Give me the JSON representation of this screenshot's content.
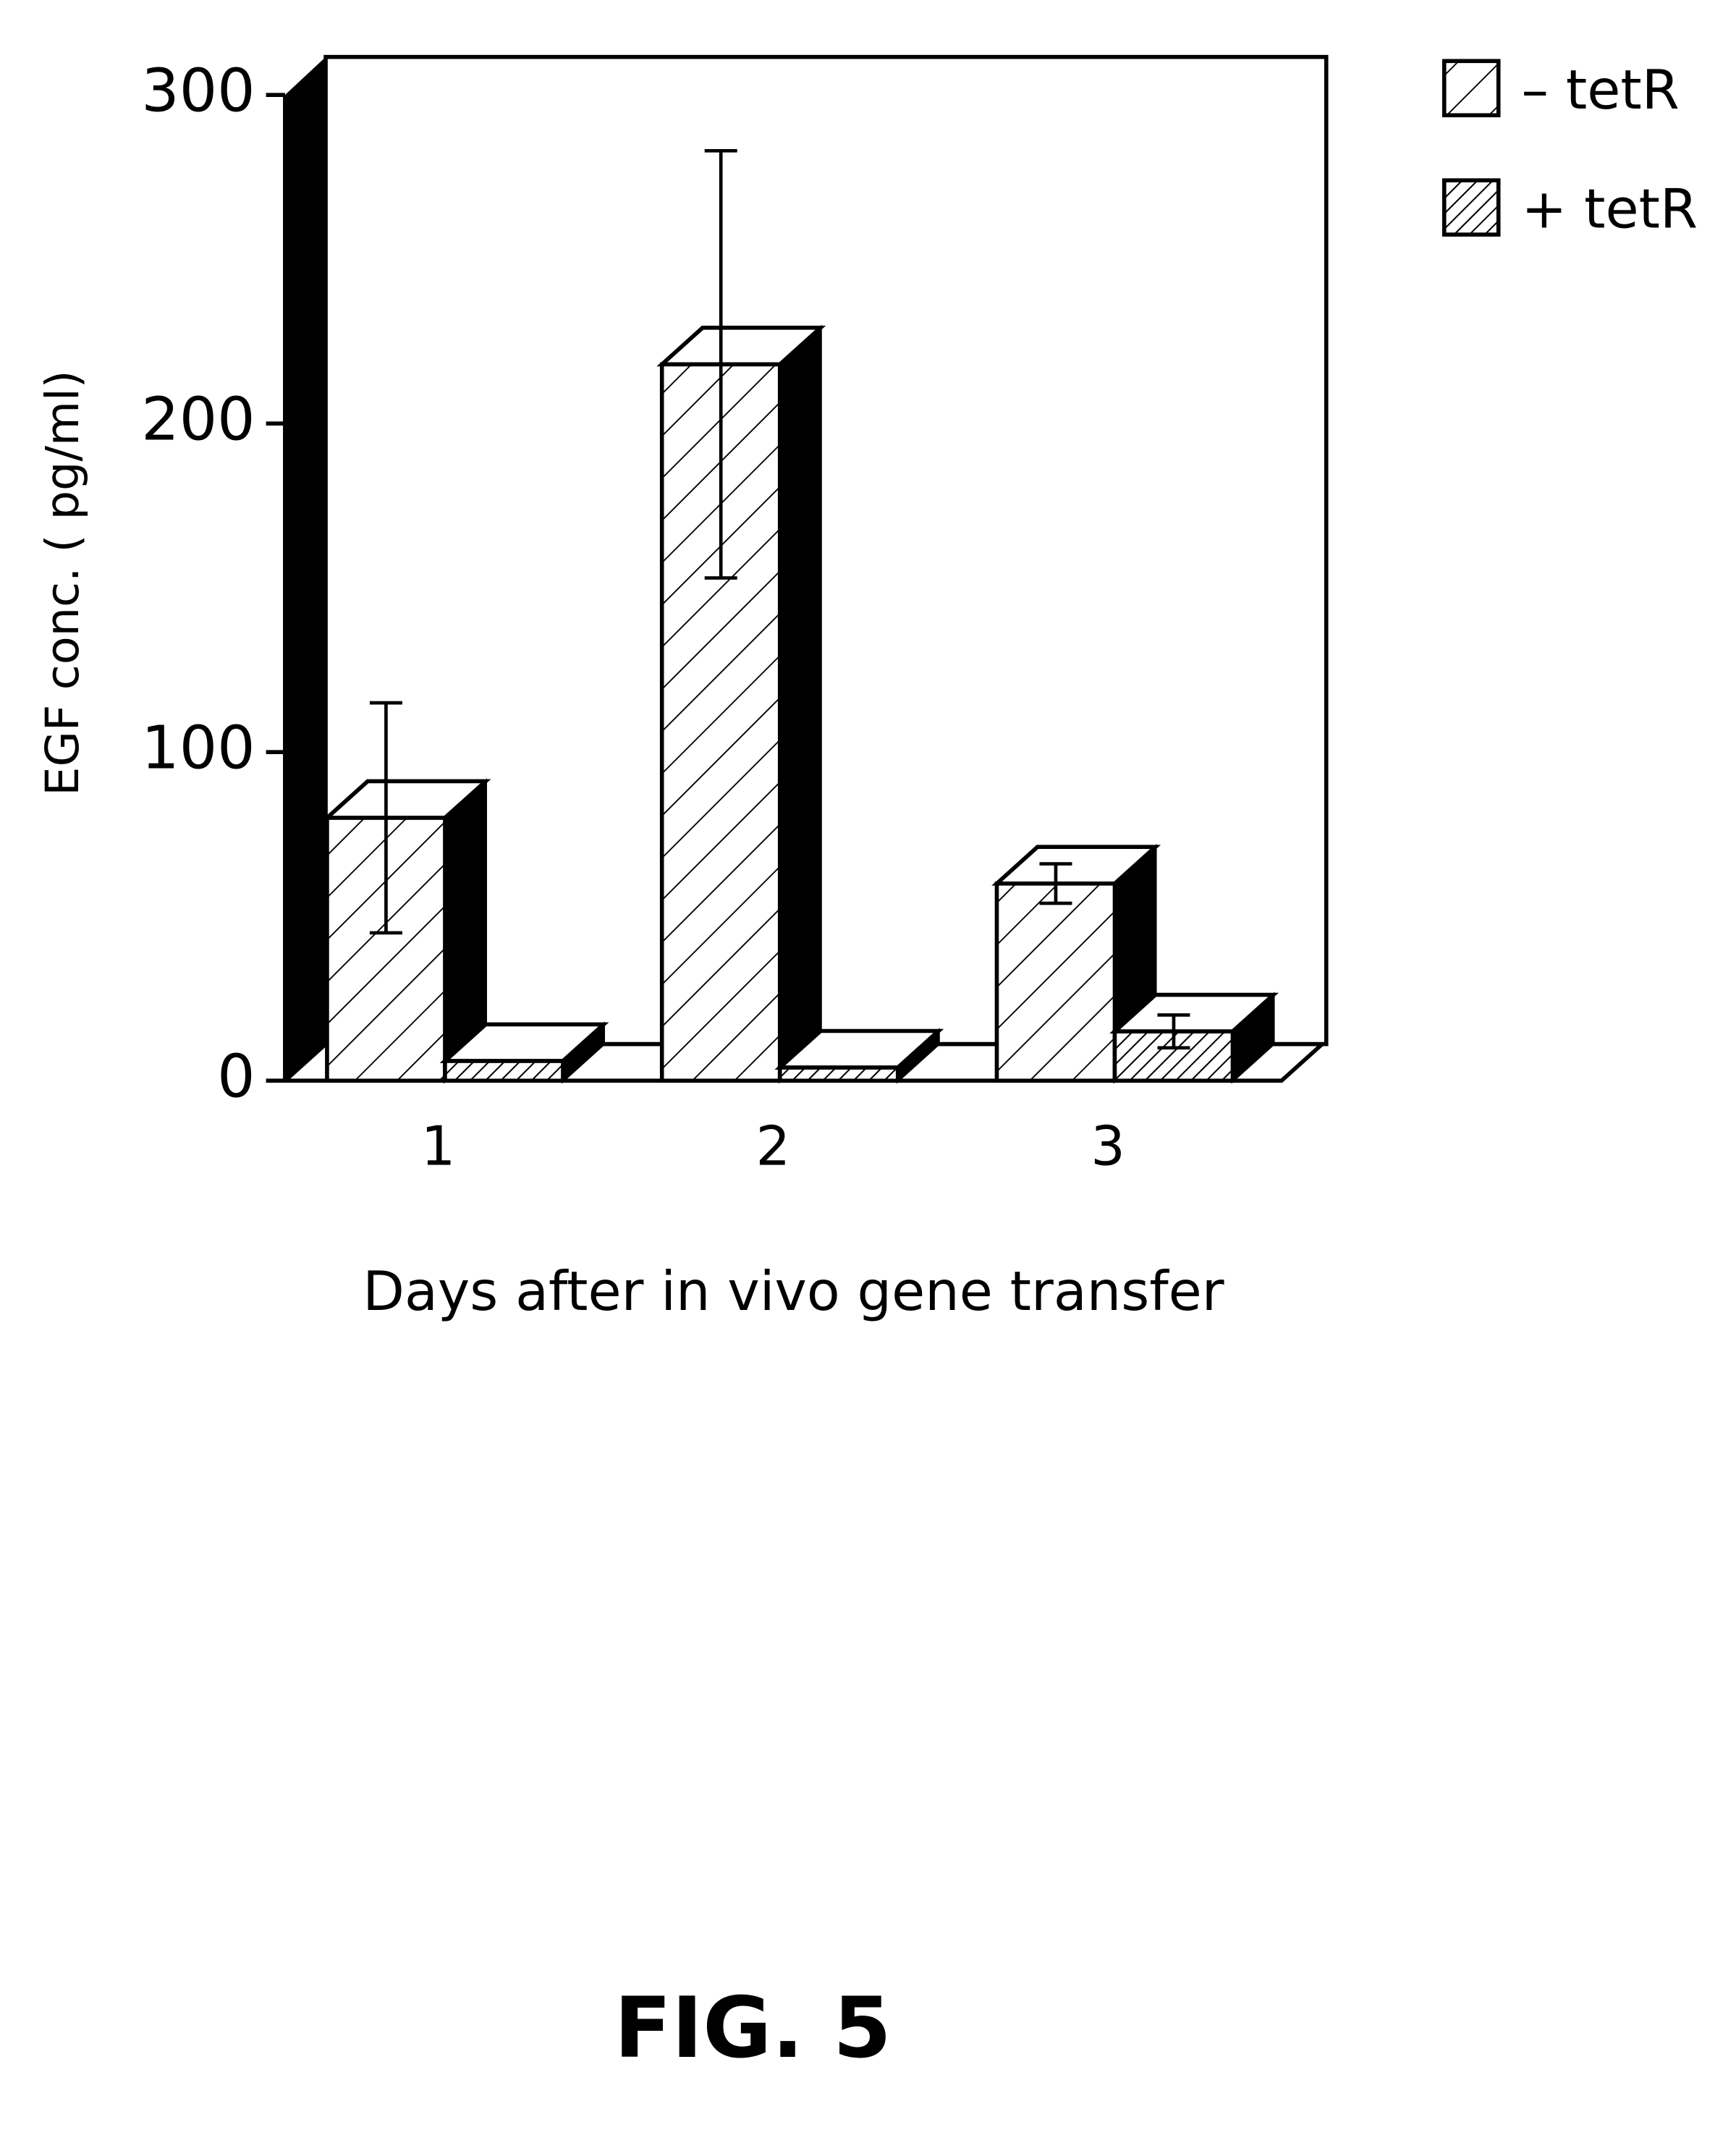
{
  "chart_data": {
    "type": "bar3d",
    "title": "FIG. 5",
    "xlabel": "Days after in vivo gene transfer",
    "ylabel": "EGF conc. ( pg/ml)",
    "categories": [
      "1",
      "2",
      "3"
    ],
    "series": [
      {
        "name": "– tetR",
        "color": "#000000",
        "values": [
          80,
          218,
          60
        ],
        "errors": [
          35,
          65,
          6
        ]
      },
      {
        "name": "+ tetR",
        "color": "#000000",
        "values": [
          6,
          4,
          15
        ],
        "errors": [
          null,
          null,
          5
        ]
      }
    ],
    "ylim": [
      0,
      300
    ],
    "yticks": [
      0,
      100,
      200,
      300
    ],
    "legend": "upper right"
  }
}
